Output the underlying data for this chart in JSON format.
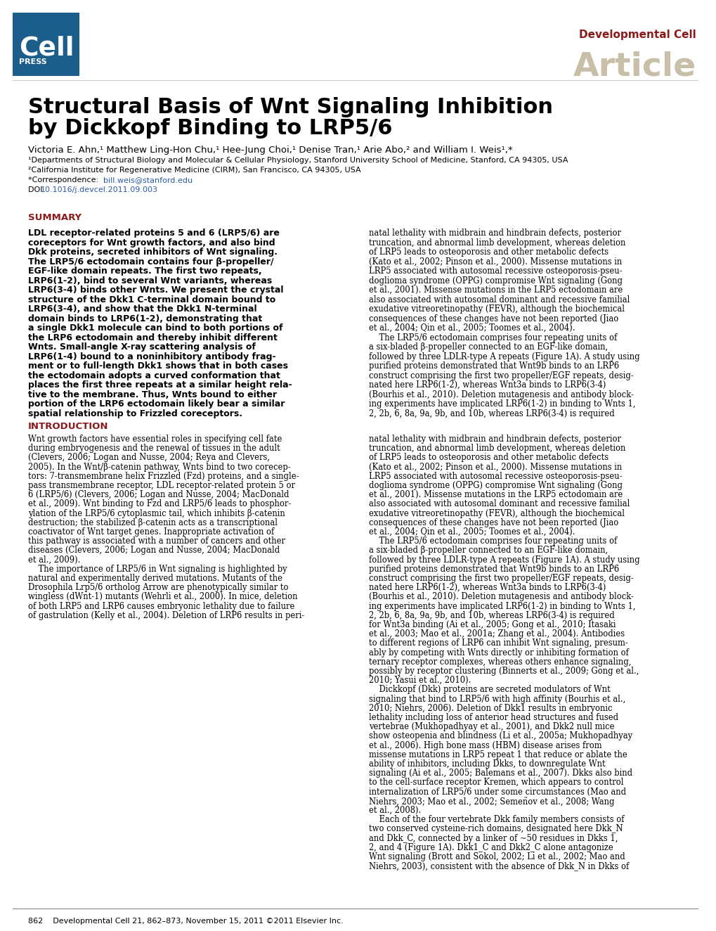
{
  "title_line1": "Structural Basis of Wnt Signaling Inhibition",
  "title_line2": "by Dickkopf Binding to LRP5/6",
  "journal_label": "Developmental Cell",
  "article_label": "Article",
  "journal_color": "#8B1A1A",
  "article_color": "#C8BFA8",
  "cell_press_bg": "#1B5E8B",
  "authors": "Victoria E. Ahn,¹ Matthew Ling-Hon Chu,¹ Hee-Jung Choi,¹ Denise Tran,¹ Arie Abo,² and William I. Weis¹,*",
  "affil1": "¹Departments of Structural Biology and Molecular & Cellular Physiology, Stanford University School of Medicine, Stanford, CA 94305, USA",
  "affil2": "²California Institute for Regenerative Medicine (CIRM), San Francisco, CA 94305, USA",
  "link_color": "#2B5BA8",
  "summary_color": "#8B1A1A",
  "intro_color": "#8B1A1A",
  "footer": "862    Developmental Cell 21, 862–873, November 15, 2011 ©2011 Elsevier Inc.",
  "bg_color": "#FFFFFF"
}
